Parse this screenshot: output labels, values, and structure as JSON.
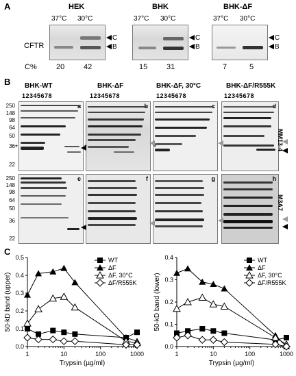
{
  "panel_a": {
    "label": "A",
    "groups": [
      {
        "title": "HEK",
        "temps": [
          "37°C",
          "30°C"
        ],
        "cpct": [
          "20",
          "42"
        ]
      },
      {
        "title": "BHK",
        "temps": [
          "37°C",
          "30°C"
        ],
        "cpct": [
          "15",
          "31"
        ]
      },
      {
        "title": "BHK-ΔF",
        "temps": [
          "37°C",
          "30°C"
        ],
        "cpct": [
          "7",
          "5"
        ]
      }
    ],
    "row_label": "CFTR",
    "c_pct_label": "C%",
    "band_c": "C",
    "band_b": "B"
  },
  "panel_b": {
    "label": "B",
    "titles": [
      "BHK-WT",
      "BHK-ΔF",
      "BHK-ΔF, 30°C",
      "BHK-ΔF/R555K"
    ],
    "lanes": "12345678",
    "sub_top": [
      "a",
      "b",
      "c",
      "d"
    ],
    "sub_bottom": [
      "e",
      "f",
      "g",
      "h"
    ],
    "mw": [
      "250",
      "148",
      "98",
      "64",
      "50",
      "36",
      "22"
    ],
    "mw_bottom": [
      "250",
      "148",
      "98",
      "64",
      "50",
      "36",
      "22"
    ],
    "antibody_top": "MM13-4",
    "antibody_bottom": "M3A7",
    "star": "*"
  },
  "panel_c": {
    "label": "C",
    "chart_data": [
      {
        "type": "line",
        "ylabel": "50-kD band (upper)",
        "xlabel": "Trypsin (µg/ml)",
        "xscale": "log",
        "ylim": [
          0,
          0.5
        ],
        "yticks": [
          "0.0",
          "0.1",
          "0.2",
          "0.3",
          "0.4",
          "0.5"
        ],
        "xticks": [
          "1",
          "10",
          "100",
          "1000"
        ],
        "legend": "top-right",
        "series": [
          {
            "name": "WT",
            "marker": "square-filled",
            "x": [
              1,
              2,
              5,
              10,
              20,
              500,
              1000
            ],
            "y": [
              0.1,
              0.07,
              0.09,
              0.08,
              0.07,
              0.05,
              0.08
            ]
          },
          {
            "name": "ΔF",
            "marker": "triangle-filled",
            "x": [
              1,
              2,
              5,
              10,
              20,
              500,
              1000
            ],
            "y": [
              0.29,
              0.41,
              0.42,
              0.44,
              0.36,
              0.05,
              0.03
            ]
          },
          {
            "name": "ΔF, 30°C",
            "marker": "triangle-open",
            "x": [
              1,
              2,
              5,
              10,
              20,
              500,
              1000
            ],
            "y": [
              0.13,
              0.21,
              0.27,
              0.28,
              0.22,
              0.03,
              0.02
            ]
          },
          {
            "name": "ΔF/R555K",
            "marker": "diamond-open",
            "x": [
              1,
              2,
              5,
              10,
              20,
              500,
              1000
            ],
            "y": [
              0.05,
              0.04,
              0.04,
              0.03,
              0.03,
              0.01,
              0.01
            ]
          }
        ]
      },
      {
        "type": "line",
        "ylabel": "50-kD band (lower)",
        "xlabel": "Trypsin (µg/ml)",
        "xscale": "log",
        "ylim": [
          0,
          0.4
        ],
        "yticks": [
          "0.0",
          "0.1",
          "0.2",
          "0.3",
          "0.4"
        ],
        "xticks": [
          "1",
          "10",
          "100",
          "1000"
        ],
        "legend": "top-right",
        "series": [
          {
            "name": "WT",
            "marker": "square-filled",
            "x": [
              1,
              2,
              5,
              10,
              20,
              500,
              1000
            ],
            "y": [
              0.06,
              0.07,
              0.08,
              0.07,
              0.06,
              0.03,
              0.04
            ]
          },
          {
            "name": "ΔF",
            "marker": "triangle-filled",
            "x": [
              1,
              2,
              5,
              10,
              20,
              500,
              1000
            ],
            "y": [
              0.33,
              0.35,
              0.29,
              0.28,
              0.26,
              0.05,
              0.0
            ]
          },
          {
            "name": "ΔF, 30°C",
            "marker": "triangle-open",
            "x": [
              1,
              2,
              5,
              10,
              20,
              500,
              1000
            ],
            "y": [
              0.17,
              0.2,
              0.22,
              0.19,
              0.18,
              0.04,
              0.01
            ]
          },
          {
            "name": "ΔF/R555K",
            "marker": "diamond-open",
            "x": [
              1,
              2,
              5,
              10,
              20,
              500,
              1000
            ],
            "y": [
              0.04,
              0.05,
              0.03,
              0.03,
              0.02,
              0.01,
              0.0
            ]
          }
        ]
      }
    ]
  }
}
